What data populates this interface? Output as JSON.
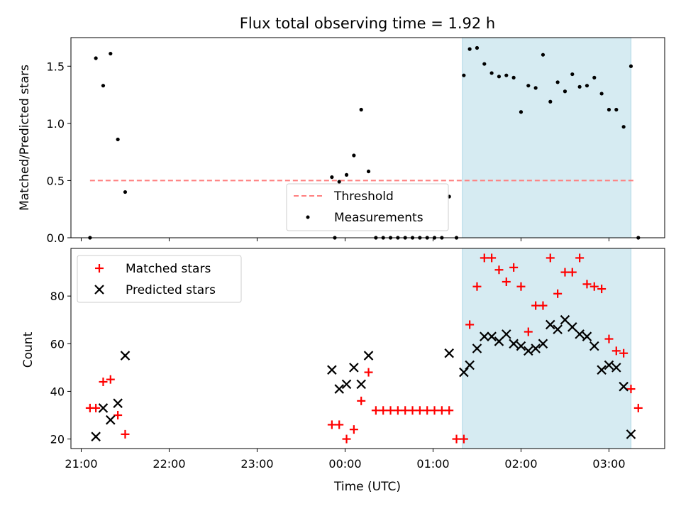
{
  "chart_data": [
    {
      "type": "scatter",
      "title": "Flux total observing time = 1.92 h",
      "xlabel": "",
      "ylabel": "Matched/Predicted stars",
      "xlim": [
        "20:53",
        "03:38"
      ],
      "ylim": [
        0,
        1.75
      ],
      "yticks": [
        0.0,
        0.5,
        1.0,
        1.5
      ],
      "ytick_labels": [
        "0.0",
        "0.5",
        "1.0",
        "1.5"
      ],
      "xticks": [
        "21:00",
        "22:00",
        "23:00",
        "00:00",
        "01:00",
        "02:00",
        "03:00"
      ],
      "shaded_region": {
        "x0": "01:20",
        "x1": "03:15",
        "color": "#add8e6"
      },
      "legend_position": "lower center",
      "series": [
        {
          "name": "Threshold",
          "kind": "line",
          "style": "dashed",
          "color": "#ff7f7f",
          "x": [
            "21:06",
            "03:18"
          ],
          "y": [
            0.5,
            0.5
          ]
        },
        {
          "name": "Measurements",
          "kind": "scatter",
          "marker": "dot",
          "color": "#000000",
          "x": [
            "21:06",
            "21:10",
            "21:15",
            "21:20",
            "21:25",
            "21:30",
            "23:51",
            "23:53",
            "23:56",
            "24:01",
            "24:06",
            "24:11",
            "24:16",
            "24:21",
            "24:26",
            "24:31",
            "24:36",
            "24:41",
            "24:46",
            "24:51",
            "24:56",
            "25:01",
            "25:06",
            "25:11",
            "25:16",
            "25:21",
            "25:25",
            "25:30",
            "25:35",
            "25:40",
            "25:45",
            "25:50",
            "25:55",
            "26:00",
            "26:05",
            "26:10",
            "26:15",
            "26:20",
            "26:25",
            "26:30",
            "26:35",
            "26:40",
            "26:45",
            "26:50",
            "26:55",
            "27:00",
            "27:05",
            "27:10",
            "27:15",
            "27:20"
          ],
          "y": [
            0.0,
            1.57,
            1.33,
            1.61,
            0.86,
            0.4,
            0.53,
            0.0,
            0.49,
            0.55,
            0.72,
            1.12,
            0.58,
            0.0,
            0.0,
            0.0,
            0.0,
            0.0,
            0.0,
            0.0,
            0.0,
            0.0,
            0.0,
            0.36,
            0.0,
            1.42,
            1.65,
            1.66,
            1.52,
            1.44,
            1.41,
            1.42,
            1.4,
            1.1,
            1.33,
            1.31,
            1.6,
            1.19,
            1.36,
            1.28,
            1.43,
            1.32,
            1.33,
            1.4,
            1.26,
            1.12,
            1.12,
            0.97,
            1.5,
            0.0
          ]
        }
      ]
    },
    {
      "type": "scatter",
      "title": "",
      "xlabel": "Time (UTC)",
      "ylabel": "Count",
      "xlim": [
        "20:53",
        "03:38"
      ],
      "ylim": [
        16,
        100
      ],
      "yticks": [
        20,
        40,
        60,
        80
      ],
      "ytick_labels": [
        "20",
        "40",
        "60",
        "80"
      ],
      "xticks": [
        "21:00",
        "22:00",
        "23:00",
        "00:00",
        "01:00",
        "02:00",
        "03:00"
      ],
      "xtick_labels": [
        "21:00",
        "22:00",
        "23:00",
        "00:00",
        "01:00",
        "02:00",
        "03:00"
      ],
      "shaded_region": {
        "x0": "01:20",
        "x1": "03:15",
        "color": "#add8e6"
      },
      "legend_position": "upper left",
      "series": [
        {
          "name": "Matched stars",
          "kind": "scatter",
          "marker": "plus",
          "color": "#ff0000",
          "x": [
            "21:06",
            "21:10",
            "21:15",
            "21:20",
            "21:25",
            "21:30",
            "23:51",
            "23:56",
            "24:01",
            "24:06",
            "24:11",
            "24:16",
            "24:21",
            "24:26",
            "24:31",
            "24:36",
            "24:41",
            "24:46",
            "24:51",
            "24:56",
            "25:01",
            "25:06",
            "25:11",
            "25:16",
            "25:21",
            "25:25",
            "25:30",
            "25:35",
            "25:40",
            "25:45",
            "25:50",
            "25:55",
            "26:00",
            "26:05",
            "26:10",
            "26:15",
            "26:20",
            "26:25",
            "26:30",
            "26:35",
            "26:40",
            "26:45",
            "26:50",
            "26:55",
            "27:00",
            "27:05",
            "27:10",
            "27:15",
            "27:20"
          ],
          "y": [
            33,
            33,
            44,
            45,
            30,
            22,
            26,
            26,
            20,
            24,
            36,
            48,
            32,
            32,
            32,
            32,
            32,
            32,
            32,
            32,
            32,
            32,
            32,
            20,
            20,
            68,
            84,
            96,
            96,
            91,
            86,
            92,
            84,
            65,
            76,
            76,
            96,
            81,
            90,
            90,
            96,
            85,
            84,
            83,
            62,
            57,
            56,
            41,
            33
          ]
        },
        {
          "name": "Predicted stars",
          "kind": "scatter",
          "marker": "x",
          "color": "#000000",
          "x": [
            "21:10",
            "21:15",
            "21:20",
            "21:25",
            "21:30",
            "23:51",
            "23:56",
            "24:01",
            "24:06",
            "24:11",
            "24:16",
            "25:11",
            "25:21",
            "25:25",
            "25:30",
            "25:35",
            "25:40",
            "25:45",
            "25:50",
            "25:55",
            "26:00",
            "26:05",
            "26:10",
            "26:15",
            "26:20",
            "26:25",
            "26:30",
            "26:35",
            "26:40",
            "26:45",
            "26:50",
            "26:55",
            "27:00",
            "27:05",
            "27:10",
            "27:15"
          ],
          "y": [
            21,
            33,
            28,
            35,
            55,
            49,
            41,
            43,
            50,
            43,
            55,
            56,
            48,
            51,
            58,
            63,
            63,
            61,
            64,
            60,
            59,
            57,
            58,
            60,
            68,
            66,
            70,
            67,
            64,
            63,
            59,
            49,
            51,
            50,
            42,
            22
          ]
        }
      ]
    }
  ]
}
